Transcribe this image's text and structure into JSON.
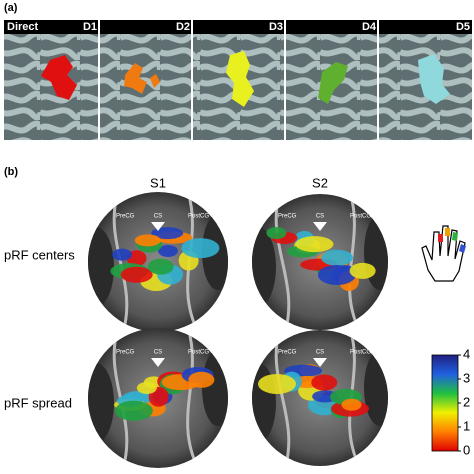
{
  "panel_a": {
    "label": "(a)",
    "row_label": "Direct",
    "tiles": [
      "D1",
      "D2",
      "D3",
      "D4",
      "D5"
    ]
  },
  "panel_b": {
    "label": "(b)",
    "columns": [
      "S1",
      "S2"
    ],
    "rows": [
      "pRF centers",
      "pRF spread"
    ],
    "anatomical_labels": [
      "PreCG",
      "CS",
      "PostCG"
    ],
    "colorbar": {
      "lim": [
        0,
        4
      ],
      "ticks": [
        0,
        1,
        2,
        3,
        4
      ]
    }
  }
}
